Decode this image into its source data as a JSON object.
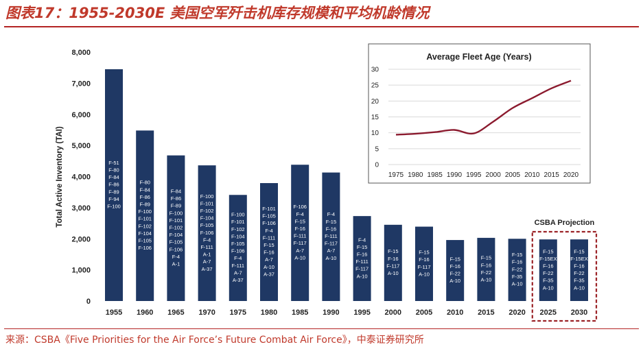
{
  "header": {
    "title": "图表17：1955-2030E 美国空军歼击机库存规模和平均机龄情况"
  },
  "footer": {
    "source": "来源：CSBA《Five Priorities for the Air Force’s Future Combat Air Force》，中泰证券研究所"
  },
  "chart_data": [
    {
      "type": "bar",
      "title": "",
      "xlabel": "",
      "ylabel": "Total Active Inventory (TAI)",
      "ylim": [
        0,
        8000
      ],
      "yticks": [
        "0",
        "1,000",
        "2,000",
        "3,000",
        "4,000",
        "5,000",
        "6,000",
        "7,000",
        "8,000"
      ],
      "categories": [
        "1955",
        "1960",
        "1965",
        "1970",
        "1975",
        "1980",
        "1985",
        "1990",
        "1995",
        "2000",
        "2005",
        "2010",
        "2015",
        "2020",
        "2025",
        "2030"
      ],
      "values": [
        7450,
        5480,
        4680,
        4360,
        3410,
        3790,
        4380,
        4130,
        2730,
        2450,
        2390,
        1960,
        2030,
        2000,
        1980,
        1980
      ],
      "bar_labels": [
        [
          "F-51",
          "F-80",
          "F-84",
          "F-86",
          "F-89",
          "F-94",
          "F-100"
        ],
        [
          "F-80",
          "F-84",
          "F-86",
          "F-89",
          "F-100",
          "F-101",
          "F-102",
          "F-104",
          "F-105",
          "F-106"
        ],
        [
          "F-84",
          "F-86",
          "F-89",
          "F-100",
          "F-101",
          "F-102",
          "F-104",
          "F-105",
          "F-106",
          "F-4",
          "A-1"
        ],
        [
          "F-100",
          "F-101",
          "F-102",
          "F-104",
          "F-105",
          "F-106",
          "F-4",
          "F-111",
          "A-1",
          "A-7",
          "A-37"
        ],
        [
          "F-100",
          "F-101",
          "F-102",
          "F-104",
          "F-105",
          "F-106",
          "F-4",
          "F-111",
          "A-7",
          "A-37"
        ],
        [
          "F-101",
          "F-105",
          "F-106",
          "F-4",
          "F-111",
          "F-15",
          "F-16",
          "A-7",
          "A-10",
          "A-37"
        ],
        [
          "F-106",
          "F-4",
          "F-15",
          "F-16",
          "F-111",
          "F-117",
          "A-7",
          "A-10"
        ],
        [
          "F-4",
          "F-15",
          "F-16",
          "F-111",
          "F-117",
          "A-7",
          "A-10"
        ],
        [
          "F-4",
          "F-15",
          "F-16",
          "F-111",
          "F-117",
          "A-10"
        ],
        [
          "F-15",
          "F-16",
          "F-117",
          "A-10"
        ],
        [
          "F-15",
          "F-16",
          "F-117",
          "A-10"
        ],
        [
          "F-15",
          "F-16",
          "F-22",
          "A-10"
        ],
        [
          "F-15",
          "F-16",
          "F-22",
          "A-10"
        ],
        [
          "F-15",
          "F-16",
          "F-22",
          "F-35",
          "A-10"
        ],
        [
          "F-15",
          "F-15EX",
          "F-16",
          "F-22",
          "F-35",
          "A-10"
        ],
        [
          "F-15",
          "F-15EX",
          "F-16",
          "F-22",
          "F-35",
          "A-10"
        ]
      ],
      "projection_label": "CSBA Projection",
      "projection_categories": [
        "2025",
        "2030"
      ],
      "grid": false,
      "colors": {
        "bar": "#1f3864",
        "projection_box": "#9b2226"
      }
    },
    {
      "type": "line",
      "title": "Average Fleet Age (Years)",
      "x": [
        1975,
        1980,
        1985,
        1990,
        1995,
        2000,
        2005,
        2010,
        2015,
        2020
      ],
      "y": [
        9.4,
        9.7,
        10.2,
        10.9,
        9.8,
        13.5,
        17.8,
        20.9,
        24.0,
        26.4
      ],
      "ylim": [
        0,
        30
      ],
      "yticks": [
        0,
        5,
        10,
        15,
        20,
        25,
        30
      ],
      "grid": true,
      "colors": {
        "line": "#8b1a2e"
      }
    }
  ]
}
